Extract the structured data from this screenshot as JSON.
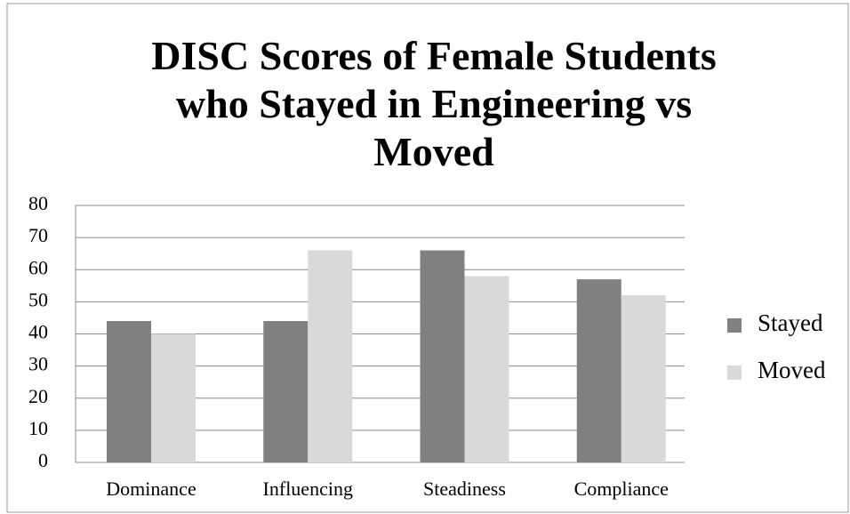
{
  "chart_data": {
    "type": "bar",
    "title": "DISC Scores of Female Students who Stayed in Engineering vs Moved",
    "categories": [
      "Dominance",
      "Influencing",
      "Steadiness",
      "Compliance"
    ],
    "series": [
      {
        "name": "Stayed",
        "color": "#808080",
        "values": [
          44,
          44,
          66,
          57
        ]
      },
      {
        "name": "Moved",
        "color": "#d9d9d9",
        "values": [
          40,
          66,
          58,
          52
        ]
      }
    ],
    "ylim": [
      0,
      80
    ],
    "yticks": [
      0,
      10,
      20,
      30,
      40,
      50,
      60,
      70,
      80
    ],
    "grid": true,
    "legend": "right"
  }
}
